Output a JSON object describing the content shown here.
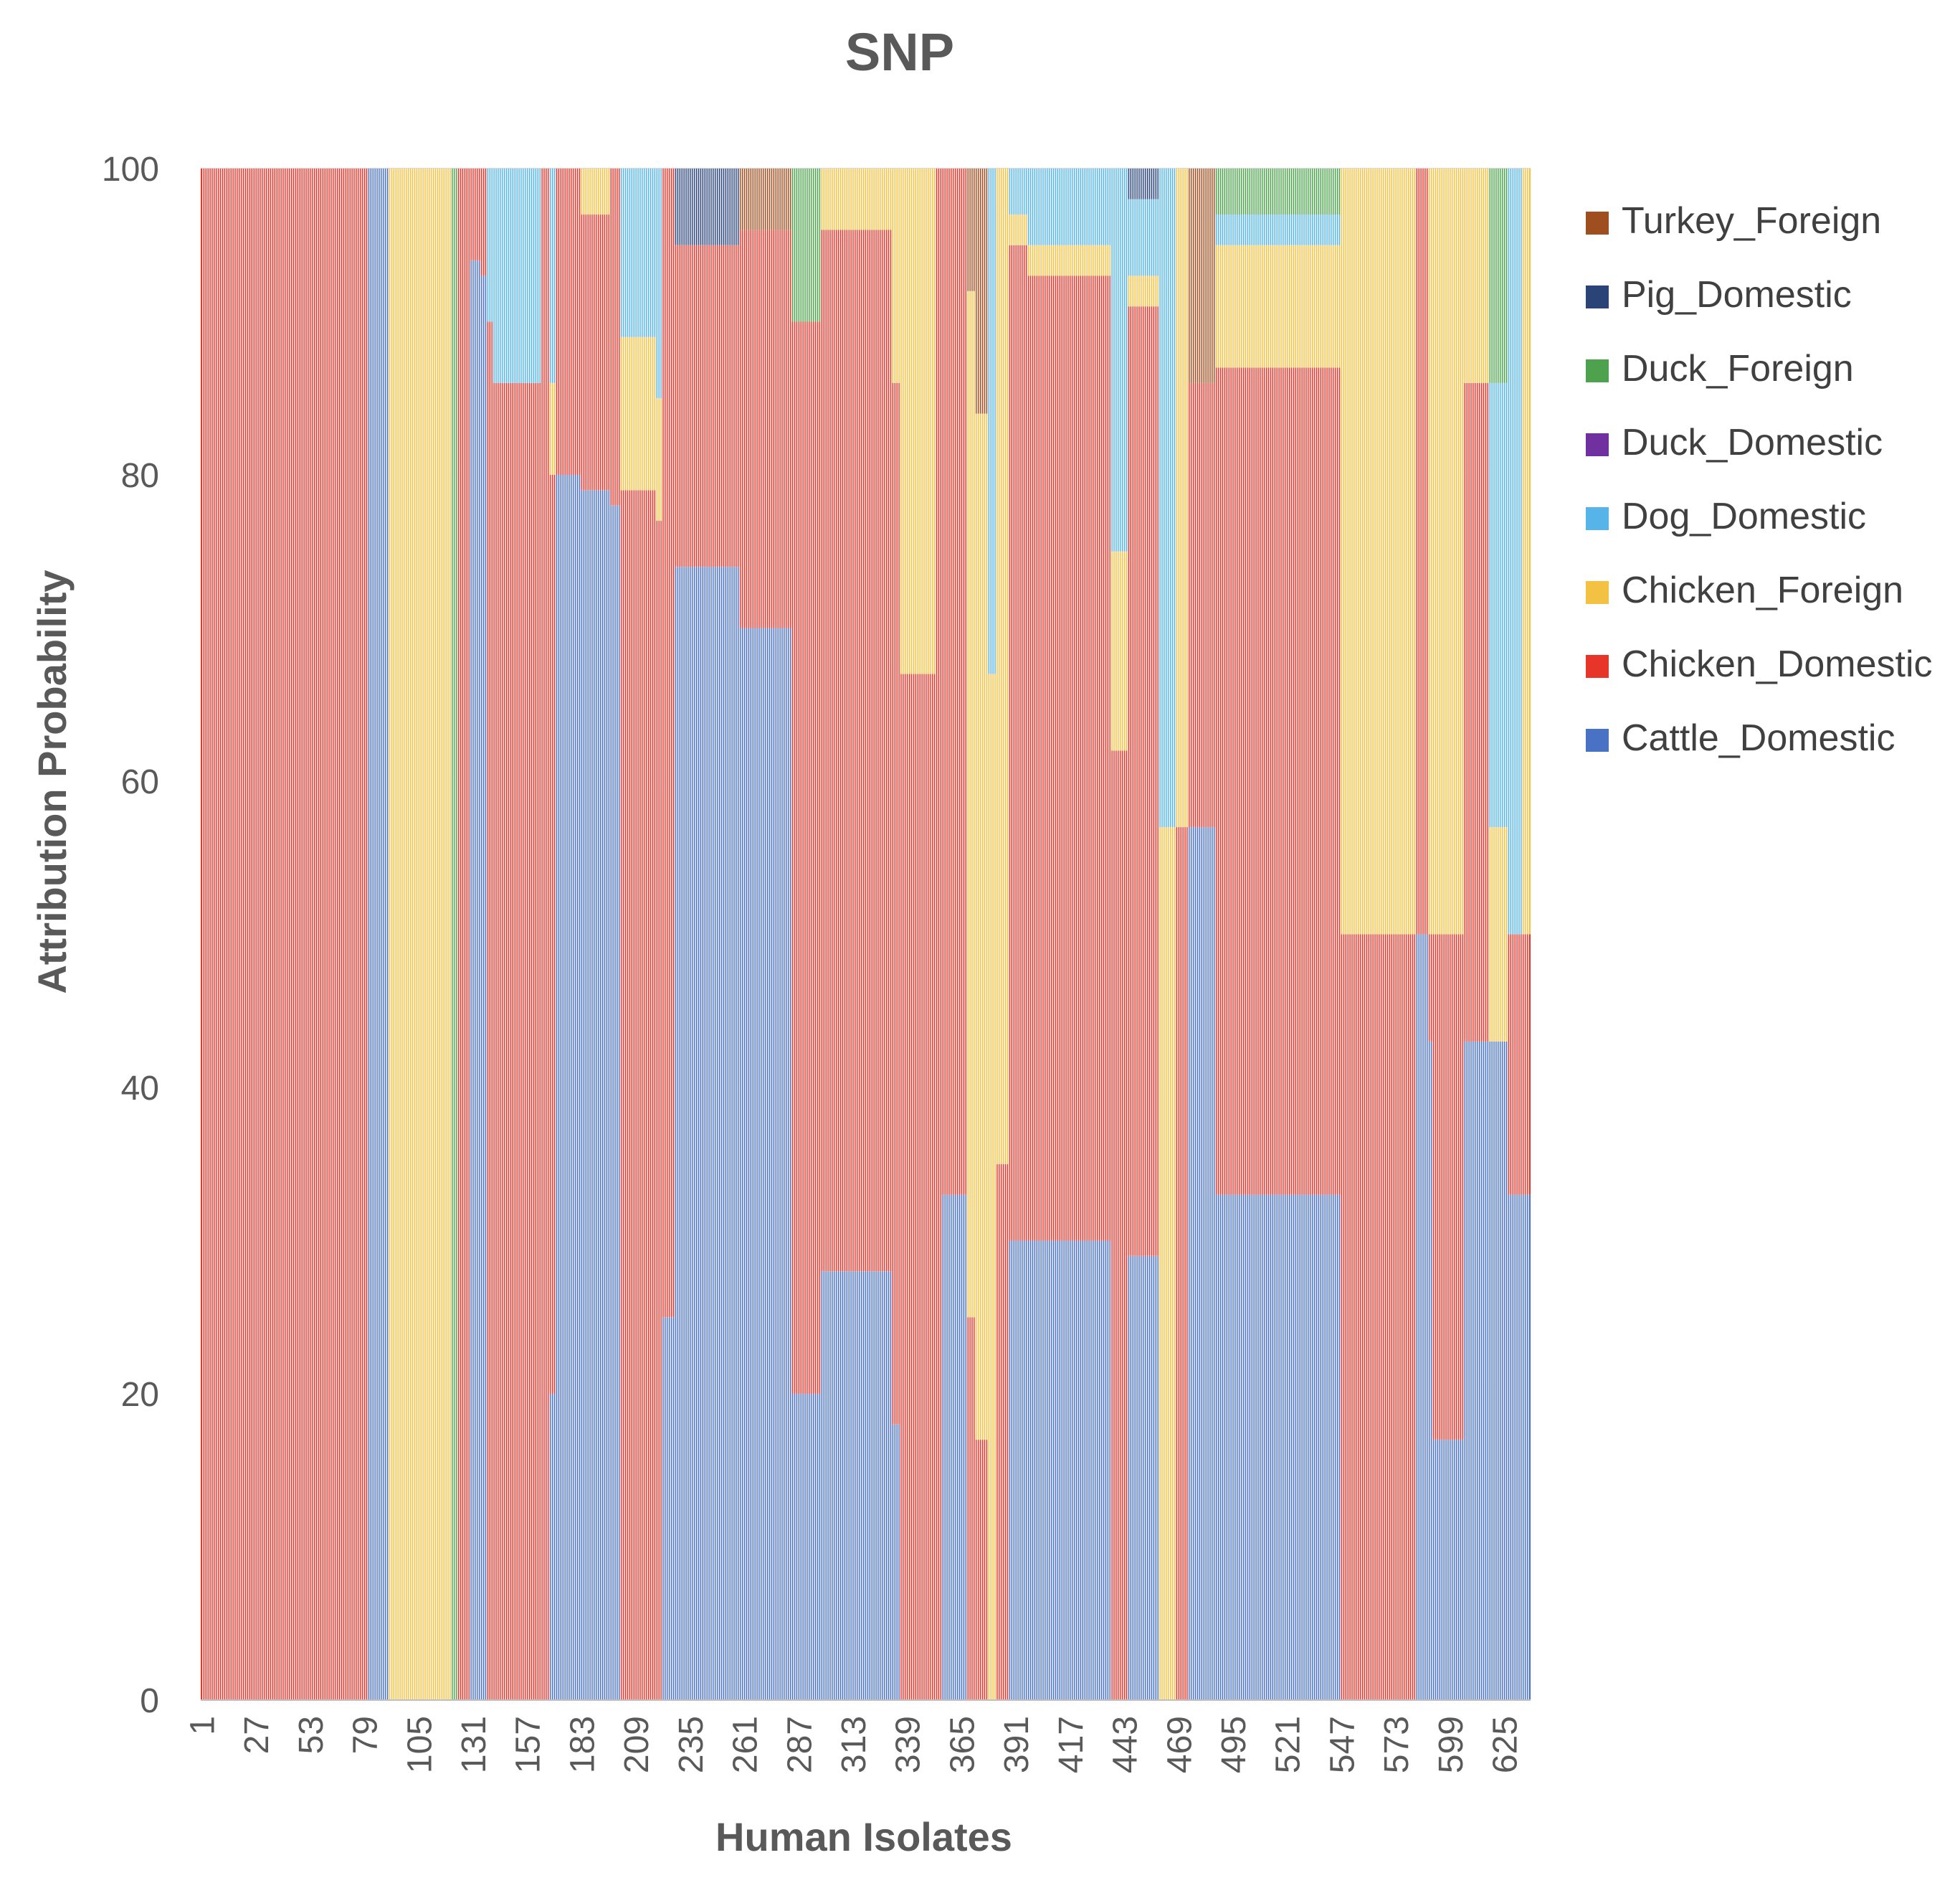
{
  "chart_data": {
    "type": "bar",
    "stacked": "100%",
    "title": "SNP",
    "xlabel": "Human Isolates",
    "ylabel": "Attribution Probability",
    "ylim": [
      0,
      100
    ],
    "yticks": [
      "0",
      "20",
      "40",
      "60",
      "80",
      "100"
    ],
    "xticks": [
      "1",
      "27",
      "53",
      "79",
      "105",
      "131",
      "157",
      "183",
      "209",
      "235",
      "261",
      "287",
      "313",
      "339",
      "365",
      "391",
      "417",
      "443",
      "469",
      "495",
      "521",
      "547",
      "573",
      "599",
      "625"
    ],
    "x_range": [
      1,
      637
    ],
    "grid": "horizontal",
    "legend_position": "right",
    "series": [
      {
        "name": "Turkey_Foreign",
        "color": "#9E4E1F"
      },
      {
        "name": "Pig_Domestic",
        "color": "#2B4478"
      },
      {
        "name": "Duck_Foreign",
        "color": "#4EA24E"
      },
      {
        "name": "Duck_Domestic",
        "color": "#7030A0"
      },
      {
        "name": "Dog_Domestic",
        "color": "#56B4E9"
      },
      {
        "name": "Chicken_Foreign",
        "color": "#F4C242"
      },
      {
        "name": "Chicken_Domestic",
        "color": "#E8352A"
      },
      {
        "name": "Cattle_Domestic",
        "color": "#4A72C4"
      }
    ],
    "segments": [
      {
        "from": 1,
        "to": 80,
        "stack": {
          "Chicken_Domestic": 100
        }
      },
      {
        "from": 81,
        "to": 90,
        "stack": {
          "Cattle_Domestic": 100
        }
      },
      {
        "from": 91,
        "to": 120,
        "stack": {
          "Chicken_Foreign": 100
        }
      },
      {
        "from": 121,
        "to": 123,
        "stack": {
          "Duck_Foreign": 100
        }
      },
      {
        "from": 124,
        "to": 129,
        "stack": {
          "Chicken_Domestic": 100
        }
      },
      {
        "from": 130,
        "to": 134,
        "stack": {
          "Cattle_Domestic": 94,
          "Chicken_Domestic": 6
        }
      },
      {
        "from": 135,
        "to": 137,
        "stack": {
          "Cattle_Domestic": 93,
          "Chicken_Domestic": 7
        }
      },
      {
        "from": 138,
        "to": 140,
        "stack": {
          "Chicken_Domestic": 90,
          "Dog_Domestic": 10
        }
      },
      {
        "from": 141,
        "to": 163,
        "stack": {
          "Chicken_Domestic": 86,
          "Dog_Domestic": 14
        }
      },
      {
        "from": 164,
        "to": 167,
        "stack": {
          "Chicken_Domestic": 100
        }
      },
      {
        "from": 168,
        "to": 170,
        "stack": {
          "Cattle_Domestic": 20,
          "Chicken_Domestic": 60,
          "Chicken_Foreign": 6,
          "Dog_Domestic": 14
        }
      },
      {
        "from": 171,
        "to": 182,
        "stack": {
          "Cattle_Domestic": 80,
          "Chicken_Domestic": 20
        }
      },
      {
        "from": 183,
        "to": 196,
        "stack": {
          "Cattle_Domestic": 79,
          "Chicken_Domestic": 18,
          "Chicken_Foreign": 3
        }
      },
      {
        "from": 197,
        "to": 201,
        "stack": {
          "Cattle_Domestic": 78,
          "Chicken_Domestic": 22
        }
      },
      {
        "from": 202,
        "to": 218,
        "stack": {
          "Chicken_Domestic": 79,
          "Chicken_Foreign": 10,
          "Dog_Domestic": 11
        }
      },
      {
        "from": 219,
        "to": 221,
        "stack": {
          "Chicken_Domestic": 77,
          "Chicken_Foreign": 8,
          "Dog_Domestic": 15
        }
      },
      {
        "from": 222,
        "to": 227,
        "stack": {
          "Cattle_Domestic": 25,
          "Chicken_Domestic": 75
        }
      },
      {
        "from": 228,
        "to": 258,
        "stack": {
          "Cattle_Domestic": 74,
          "Chicken_Domestic": 21,
          "Pig_Domestic": 5
        }
      },
      {
        "from": 259,
        "to": 283,
        "stack": {
          "Cattle_Domestic": 70,
          "Chicken_Domestic": 26,
          "Turkey_Foreign": 4
        }
      },
      {
        "from": 284,
        "to": 297,
        "stack": {
          "Cattle_Domestic": 20,
          "Chicken_Domestic": 70,
          "Duck_Foreign": 10
        }
      },
      {
        "from": 298,
        "to": 331,
        "stack": {
          "Cattle_Domestic": 28,
          "Chicken_Domestic": 68,
          "Chicken_Foreign": 4
        }
      },
      {
        "from": 332,
        "to": 335,
        "stack": {
          "Cattle_Domestic": 18,
          "Chicken_Domestic": 68,
          "Chicken_Foreign": 14
        }
      },
      {
        "from": 336,
        "to": 352,
        "stack": {
          "Chicken_Domestic": 67,
          "Chicken_Foreign": 33
        }
      },
      {
        "from": 353,
        "to": 355,
        "stack": {
          "Chicken_Domestic": 100
        }
      },
      {
        "from": 356,
        "to": 367,
        "stack": {
          "Cattle_Domestic": 33,
          "Chicken_Domestic": 67
        }
      },
      {
        "from": 368,
        "to": 371,
        "stack": {
          "Chicken_Domestic": 25,
          "Chicken_Foreign": 67,
          "Turkey_Foreign": 8
        }
      },
      {
        "from": 372,
        "to": 377,
        "stack": {
          "Chicken_Domestic": 17,
          "Chicken_Foreign": 67,
          "Turkey_Foreign": 16
        }
      },
      {
        "from": 378,
        "to": 381,
        "stack": {
          "Chicken_Foreign": 67,
          "Dog_Domestic": 33
        }
      },
      {
        "from": 382,
        "to": 387,
        "stack": {
          "Chicken_Domestic": 35,
          "Chicken_Foreign": 65
        }
      },
      {
        "from": 388,
        "to": 396,
        "stack": {
          "Cattle_Domestic": 30,
          "Chicken_Domestic": 65,
          "Chicken_Foreign": 2,
          "Dog_Domestic": 3
        }
      },
      {
        "from": 397,
        "to": 436,
        "stack": {
          "Cattle_Domestic": 30,
          "Chicken_Domestic": 63,
          "Chicken_Foreign": 2,
          "Dog_Domestic": 5
        }
      },
      {
        "from": 437,
        "to": 444,
        "stack": {
          "Chicken_Domestic": 62,
          "Chicken_Foreign": 13,
          "Dog_Domestic": 25
        }
      },
      {
        "from": 445,
        "to": 459,
        "stack": {
          "Cattle_Domestic": 29,
          "Chicken_Domestic": 62,
          "Chicken_Foreign": 2,
          "Dog_Domestic": 5,
          "Pig_Domestic": 2
        }
      },
      {
        "from": 460,
        "to": 467,
        "stack": {
          "Chicken_Foreign": 57,
          "Dog_Domestic": 43
        }
      },
      {
        "from": 468,
        "to": 473,
        "stack": {
          "Chicken_Domestic": 57,
          "Chicken_Foreign": 43
        }
      },
      {
        "from": 474,
        "to": 486,
        "stack": {
          "Cattle_Domestic": 57,
          "Chicken_Domestic": 29,
          "Turkey_Foreign": 14
        }
      },
      {
        "from": 487,
        "to": 546,
        "stack": {
          "Cattle_Domestic": 33,
          "Chicken_Domestic": 54,
          "Chicken_Foreign": 8,
          "Dog_Domestic": 2,
          "Duck_Foreign": 3
        }
      },
      {
        "from": 547,
        "to": 582,
        "stack": {
          "Chicken_Domestic": 50,
          "Chicken_Foreign": 50
        }
      },
      {
        "from": 583,
        "to": 588,
        "stack": {
          "Cattle_Domestic": 50,
          "Chicken_Domestic": 50
        }
      },
      {
        "from": 589,
        "to": 590,
        "stack": {
          "Cattle_Domestic": 43,
          "Chicken_Domestic": 7,
          "Chicken_Foreign": 50
        }
      },
      {
        "from": 591,
        "to": 605,
        "stack": {
          "Cattle_Domestic": 17,
          "Chicken_Domestic": 33,
          "Chicken_Foreign": 50
        }
      },
      {
        "from": 606,
        "to": 617,
        "stack": {
          "Cattle_Domestic": 43,
          "Chicken_Domestic": 43,
          "Chicken_Foreign": 14
        }
      },
      {
        "from": 618,
        "to": 626,
        "stack": {
          "Cattle_Domestic": 43,
          "Chicken_Foreign": 14,
          "Dog_Domestic": 29,
          "Duck_Foreign": 14
        }
      },
      {
        "from": 627,
        "to": 633,
        "stack": {
          "Cattle_Domestic": 33,
          "Chicken_Domestic": 17,
          "Dog_Domestic": 50
        }
      },
      {
        "from": 634,
        "to": 637,
        "stack": {
          "Cattle_Domestic": 33,
          "Chicken_Domestic": 17,
          "Chicken_Foreign": 50
        }
      }
    ]
  }
}
